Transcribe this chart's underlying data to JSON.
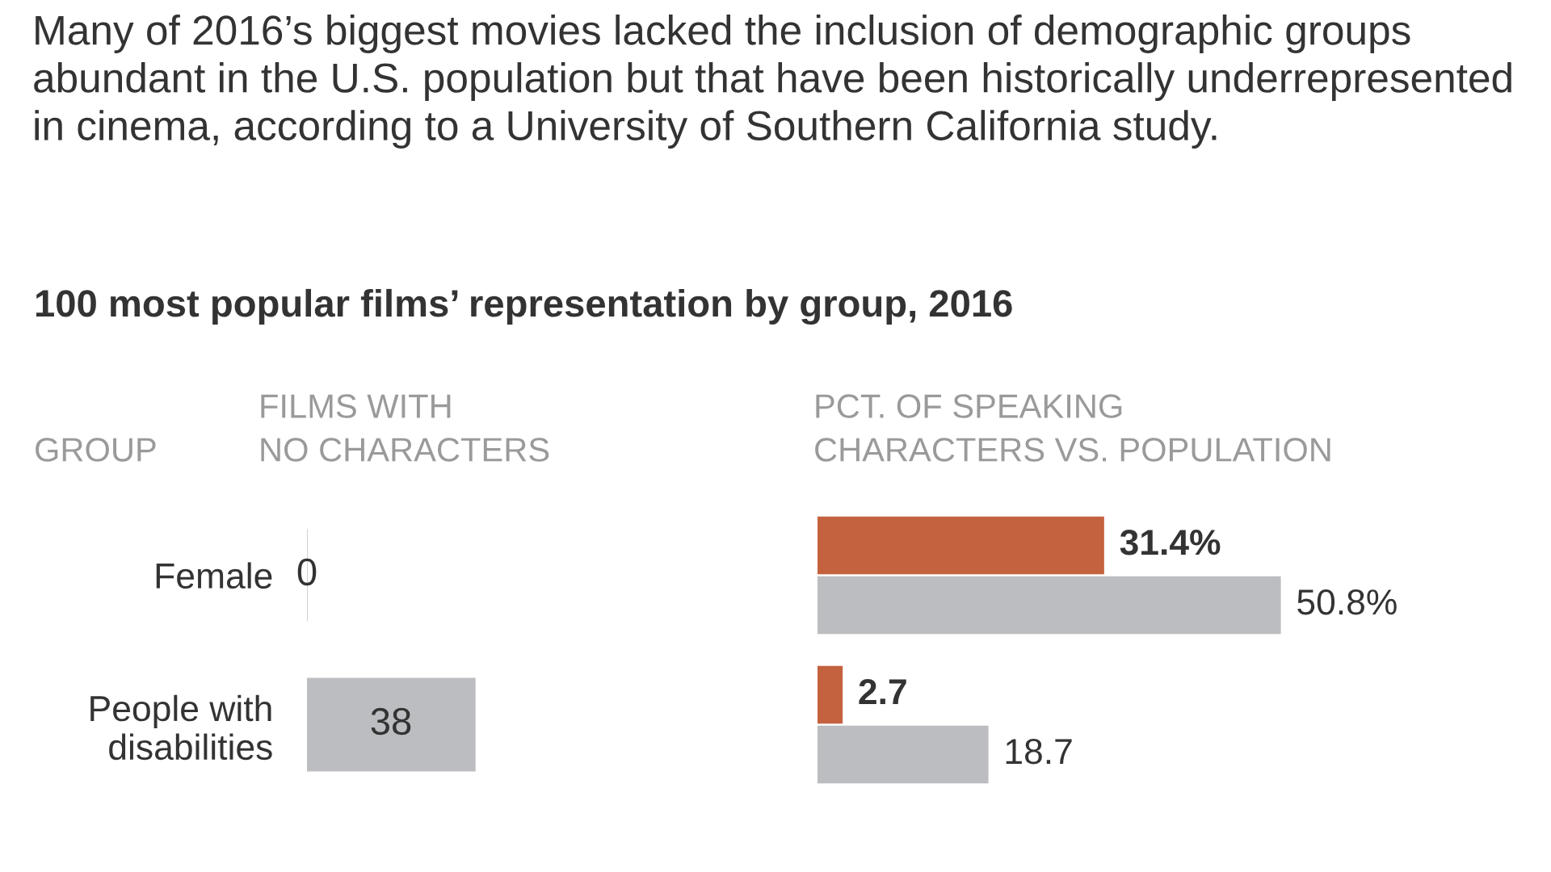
{
  "chart_data": [
    {
      "type": "bar",
      "orientation": "horizontal",
      "title": "100 most popular films’ representation by group, 2016",
      "subtitle": "Many of 2016’s biggest movies lacked the inclusion of demographic groups abundant in the U.S. population but that have been historically underrepresented in cinema, according to a University of Southern California study.",
      "ylabel": "GROUP",
      "xlabel": "FILMS WITH NO CHARACTERS",
      "categories": [
        "Female",
        "People with disabilities"
      ],
      "values": [
        0,
        38
      ],
      "color": "#bcbdc0",
      "data_labels": true,
      "tick_labels": "y",
      "grid": false,
      "legend": false
    },
    {
      "type": "bar",
      "orientation": "horizontal",
      "xlabel": "PCT. OF SPEAKING CHARACTERS VS. POPULATION",
      "tick_labels": false,
      "grid": false,
      "legend": false,
      "series": [
        {
          "color": "#c4623f",
          "values": [
            31.4,
            2.7
          ],
          "value_labels": [
            "31.4%",
            "2.7"
          ]
        },
        {
          "color": "#bcbdc0",
          "values": [
            50.8,
            18.7
          ],
          "value_labels": [
            "50.8%",
            "18.7"
          ]
        }
      ]
    }
  ]
}
